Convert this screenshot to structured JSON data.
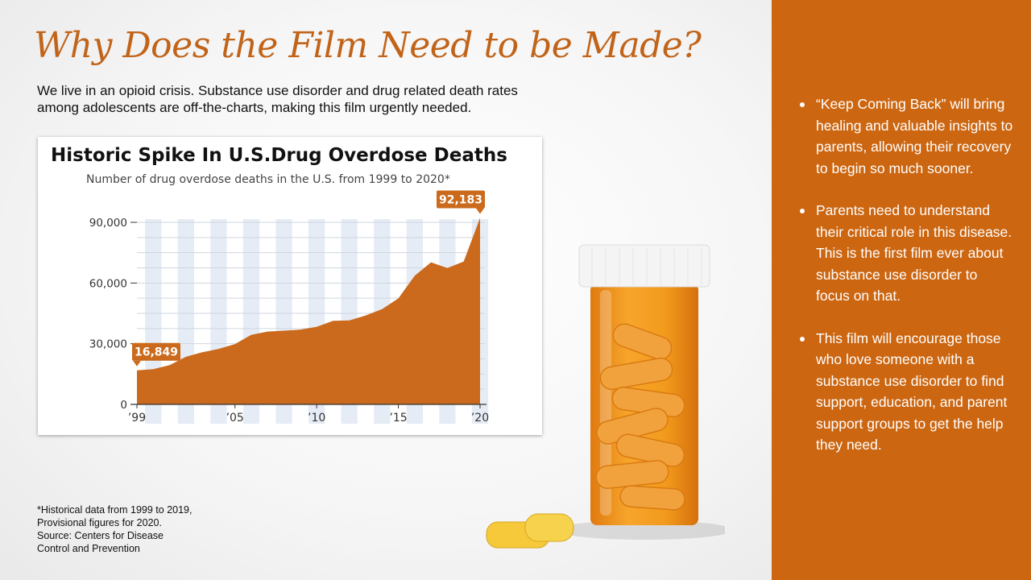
{
  "slide": {
    "title": "Why Does the Film Need to be Made?",
    "intro": "We live in an opioid crisis.  Substance use disorder and drug related death rates among adolescents are off-the-charts, making this film urgently needed.",
    "footnote_lines": [
      "*Historical data from 1999 to 2019,",
      "Provisional figures for 2020.",
      "Source: Centers for Disease",
      "Control and Prevention"
    ],
    "bullets": [
      "“Keep Coming Back” will bring healing and valuable insights to parents, allowing their recovery to begin so much sooner.",
      "Parents need to understand their critical role in this disease.  This is the first film ever about substance use disorder to focus on that.",
      "This film will encourage those who love someone with a substance use disorder to find support, education, and parent support groups to get the help they need."
    ]
  },
  "colors": {
    "accent": "#c1641a",
    "panel": "#cc6611",
    "area_fill": "#cb6a1c",
    "band": "#e6ecf5"
  },
  "chart_data": {
    "type": "area",
    "title": "Historic Spike In U.S.Drug Overdose Deaths",
    "subtitle": "Number of drug overdose deaths in the U.S. from 1999 to 2020*",
    "x": [
      1999,
      2000,
      2001,
      2002,
      2003,
      2004,
      2005,
      2006,
      2007,
      2008,
      2009,
      2010,
      2011,
      2012,
      2013,
      2014,
      2015,
      2016,
      2017,
      2018,
      2019,
      2020
    ],
    "values": [
      16849,
      17415,
      19394,
      23518,
      25785,
      27424,
      29813,
      34425,
      36010,
      36450,
      37004,
      38329,
      41340,
      41502,
      43982,
      47055,
      52404,
      63632,
      70237,
      67367,
      70630,
      92183
    ],
    "x_tick_labels": [
      "’99",
      "’05",
      "’10",
      "’15",
      "’20"
    ],
    "x_tick_years": [
      1999,
      2005,
      2010,
      2015,
      2020
    ],
    "y_ticks": [
      0,
      30000,
      60000,
      90000
    ],
    "y_tick_labels": [
      "0",
      "30,000",
      "60,000",
      "90,000"
    ],
    "ylim": [
      0,
      90000
    ],
    "callouts": [
      {
        "year": 1999,
        "label": "16,849"
      },
      {
        "year": 2020,
        "label": "92,183"
      }
    ],
    "grid": true
  }
}
